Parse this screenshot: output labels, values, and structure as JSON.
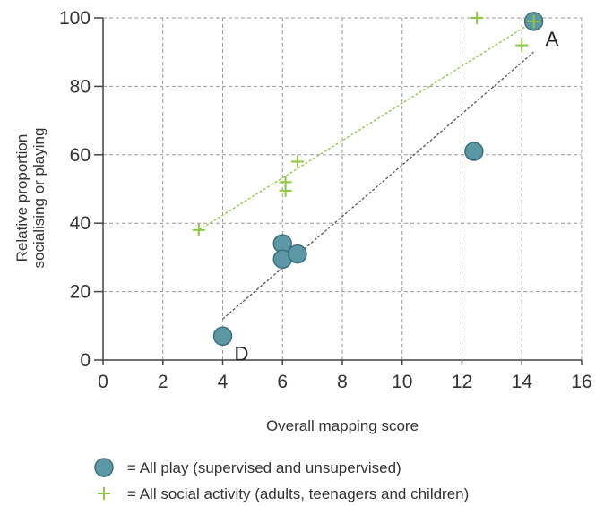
{
  "chart_data": {
    "type": "scatter",
    "xlabel": "Overall mapping score",
    "ylabel": [
      "Relative proportion",
      "socialising or playing"
    ],
    "xlim": [
      0,
      16
    ],
    "ylim": [
      0,
      100
    ],
    "xticks": [
      0,
      2,
      4,
      6,
      8,
      10,
      12,
      14,
      16
    ],
    "yticks": [
      0,
      20,
      40,
      60,
      80,
      100
    ],
    "grid": true,
    "legend_position": "bottom",
    "series": [
      {
        "name": "= All play (supervised and unsupervised)",
        "marker": "circle",
        "color": "#5b97a5",
        "edge_color": "#3d6f7c",
        "points": [
          {
            "x": 14.4,
            "y": 99
          },
          {
            "x": 12.4,
            "y": 61
          },
          {
            "x": 6.0,
            "y": 34
          },
          {
            "x": 6.0,
            "y": 29.5
          },
          {
            "x": 6.5,
            "y": 31
          },
          {
            "x": 4.0,
            "y": 7
          }
        ],
        "trendline": {
          "from": [
            4.0,
            12
          ],
          "to": [
            14.4,
            90
          ],
          "color": "#555555"
        }
      },
      {
        "name": "= All social activity (adults, teenagers and children)",
        "marker": "plus",
        "color": "#8dc63f",
        "points": [
          {
            "x": 3.2,
            "y": 38
          },
          {
            "x": 6.1,
            "y": 52
          },
          {
            "x": 6.1,
            "y": 49.5
          },
          {
            "x": 6.5,
            "y": 58
          },
          {
            "x": 12.5,
            "y": 100
          },
          {
            "x": 14.0,
            "y": 92
          },
          {
            "x": 14.4,
            "y": 99
          }
        ],
        "trendline": {
          "from": [
            3.2,
            38
          ],
          "to": [
            14.4,
            99
          ],
          "color": "#8dc63f"
        }
      }
    ],
    "annotations": [
      {
        "text": "A",
        "x": 14.4,
        "y": 99
      },
      {
        "text": "D",
        "x": 4.0,
        "y": 7
      }
    ]
  }
}
